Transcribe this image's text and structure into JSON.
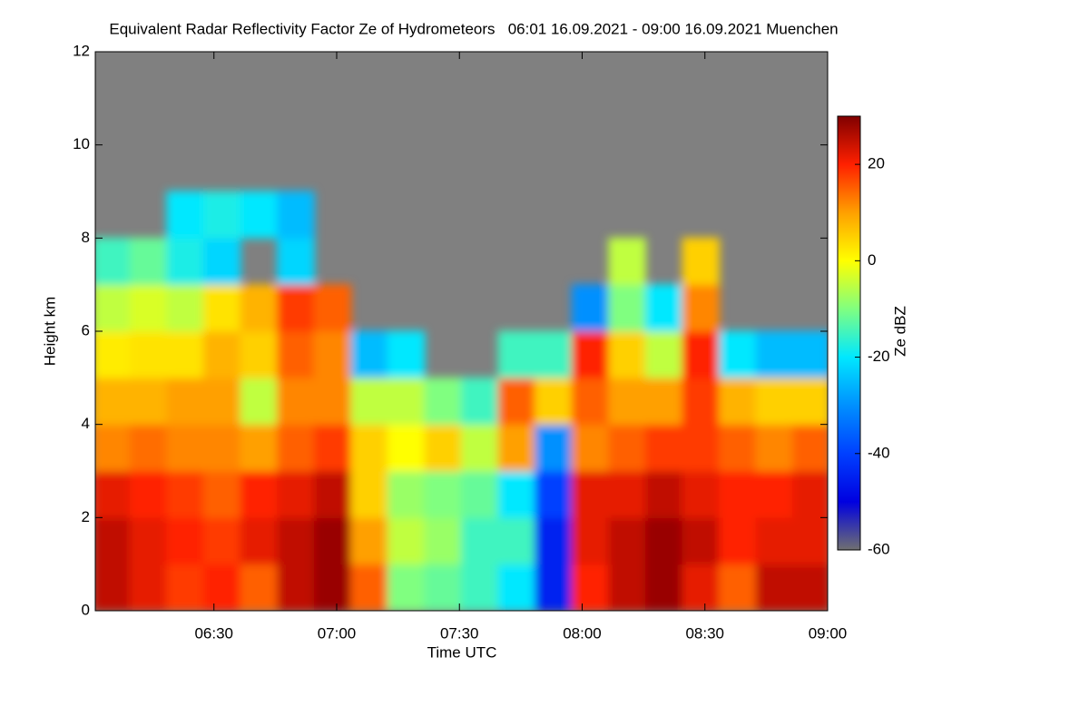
{
  "chart_data": {
    "type": "heatmap",
    "title": "Equivalent Radar Reflectivity Factor Ze of Hydrometeors   06:01 16.09.2021 - 09:00 16.09.2021 Muenchen",
    "x_label": "Time UTC",
    "y_label": "Height km",
    "colorbar_label": "Ze dBZ",
    "x": [
      365,
      374,
      383,
      392,
      401,
      410,
      419,
      428,
      437,
      446,
      455,
      464,
      473,
      482,
      491,
      500,
      509,
      518,
      527,
      536
    ],
    "y": [
      0.5,
      1.5,
      2.5,
      3.5,
      4.5,
      5.5,
      6.5,
      7.5,
      8.5,
      9.5,
      10.5,
      11.5
    ],
    "values": [
      [
        25,
        22,
        18,
        20,
        15,
        25,
        28,
        15,
        -10,
        -12,
        -15,
        -20,
        -45,
        20,
        25,
        28,
        22,
        15,
        25,
        25
      ],
      [
        25,
        22,
        20,
        18,
        22,
        25,
        28,
        10,
        -5,
        -8,
        -15,
        -15,
        -45,
        22,
        25,
        28,
        25,
        20,
        22,
        22
      ],
      [
        22,
        20,
        18,
        15,
        20,
        22,
        25,
        5,
        -8,
        -10,
        -12,
        -20,
        -40,
        22,
        22,
        25,
        22,
        20,
        20,
        22
      ],
      [
        12,
        14,
        12,
        12,
        10,
        15,
        18,
        5,
        0,
        5,
        -5,
        10,
        -30,
        12,
        15,
        18,
        18,
        15,
        12,
        15
      ],
      [
        8,
        8,
        10,
        10,
        -5,
        12,
        12,
        -5,
        -5,
        -10,
        -15,
        15,
        5,
        15,
        10,
        10,
        18,
        8,
        5,
        5
      ],
      [
        2,
        3,
        3,
        8,
        5,
        15,
        12,
        -25,
        -20,
        null,
        null,
        -15,
        -15,
        20,
        5,
        -5,
        20,
        -20,
        -25,
        -25
      ],
      [
        -5,
        -3,
        -5,
        3,
        8,
        18,
        15,
        null,
        null,
        null,
        null,
        null,
        null,
        -30,
        -10,
        -20,
        12,
        null,
        null,
        null
      ],
      [
        -15,
        -12,
        -18,
        -22,
        null,
        -22,
        null,
        null,
        null,
        null,
        null,
        null,
        null,
        null,
        -5,
        null,
        5,
        null,
        null,
        null
      ],
      [
        null,
        null,
        -20,
        -18,
        -20,
        -25,
        null,
        null,
        null,
        null,
        null,
        null,
        null,
        null,
        null,
        null,
        null,
        null,
        null,
        null
      ],
      [
        null,
        null,
        null,
        null,
        null,
        null,
        null,
        null,
        null,
        null,
        null,
        null,
        null,
        null,
        null,
        null,
        null,
        null,
        null,
        null
      ],
      [
        null,
        null,
        null,
        null,
        null,
        null,
        null,
        null,
        null,
        null,
        null,
        null,
        null,
        null,
        null,
        null,
        null,
        null,
        null,
        null
      ],
      [
        null,
        null,
        null,
        null,
        null,
        null,
        null,
        null,
        null,
        null,
        null,
        null,
        null,
        null,
        null,
        null,
        null,
        null,
        null,
        null
      ]
    ],
    "xlim": [
      361,
      540
    ],
    "ylim": [
      0,
      12
    ],
    "clim": [
      -60,
      30
    ],
    "xticks": [
      {
        "value": 390,
        "label": "06:30"
      },
      {
        "value": 420,
        "label": "07:00"
      },
      {
        "value": 450,
        "label": "07:30"
      },
      {
        "value": 480,
        "label": "08:00"
      },
      {
        "value": 510,
        "label": "08:30"
      },
      {
        "value": 540,
        "label": "09:00"
      }
    ],
    "yticks": [
      0,
      2,
      4,
      6,
      8,
      10,
      12
    ],
    "cticks": [
      -60,
      -40,
      -20,
      0,
      20
    ],
    "nodata_color": "#808080",
    "colormap": [
      "#707070",
      "#0000e0",
      "#0040ff",
      "#0090ff",
      "#00e8ff",
      "#80ff80",
      "#ffff00",
      "#ffa000",
      "#ff2000",
      "#800000"
    ]
  }
}
